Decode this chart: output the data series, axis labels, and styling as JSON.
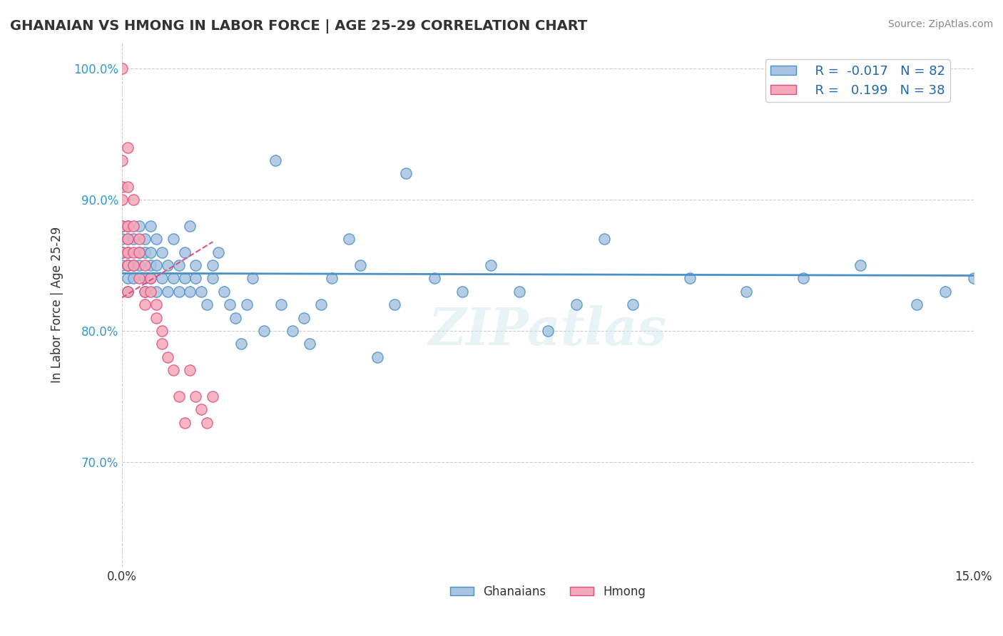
{
  "title": "GHANAIAN VS HMONG IN LABOR FORCE | AGE 25-29 CORRELATION CHART",
  "source": "Source: ZipAtlas.com",
  "xlabel": "",
  "ylabel": "In Labor Force | Age 25-29",
  "xlim": [
    0.0,
    0.15
  ],
  "ylim": [
    0.62,
    1.02
  ],
  "yticks": [
    0.7,
    0.8,
    0.9,
    1.0
  ],
  "ytick_labels": [
    "70.0%",
    "80.0%",
    "90.0%",
    "100.0%"
  ],
  "xticks": [
    0.0,
    0.15
  ],
  "xtick_labels": [
    "0.0%",
    "15.0%"
  ],
  "ghanaian_R": -0.017,
  "ghanaian_N": 82,
  "hmong_R": 0.199,
  "hmong_N": 38,
  "ghanaian_color": "#a8c4e0",
  "hmong_color": "#f4a8b8",
  "trendline_ghanaian_color": "#4a90c8",
  "trendline_hmong_color": "#e05080",
  "watermark": "ZIPatlas",
  "ghanaian_x": [
    0.0,
    0.0,
    0.0,
    0.0,
    0.0,
    0.001,
    0.001,
    0.001,
    0.001,
    0.001,
    0.001,
    0.001,
    0.002,
    0.002,
    0.002,
    0.003,
    0.003,
    0.003,
    0.004,
    0.004,
    0.004,
    0.004,
    0.005,
    0.005,
    0.005,
    0.005,
    0.006,
    0.006,
    0.006,
    0.007,
    0.007,
    0.008,
    0.008,
    0.009,
    0.009,
    0.01,
    0.01,
    0.011,
    0.011,
    0.012,
    0.012,
    0.013,
    0.013,
    0.014,
    0.015,
    0.016,
    0.016,
    0.017,
    0.018,
    0.019,
    0.02,
    0.021,
    0.022,
    0.023,
    0.025,
    0.027,
    0.028,
    0.03,
    0.032,
    0.033,
    0.035,
    0.037,
    0.04,
    0.042,
    0.045,
    0.048,
    0.05,
    0.055,
    0.06,
    0.065,
    0.07,
    0.075,
    0.08,
    0.085,
    0.09,
    0.1,
    0.11,
    0.12,
    0.13,
    0.14,
    0.145,
    0.15
  ],
  "ghanaian_y": [
    0.85,
    0.86,
    0.87,
    0.88,
    0.86,
    0.85,
    0.87,
    0.86,
    0.88,
    0.85,
    0.84,
    0.83,
    0.87,
    0.84,
    0.85,
    0.86,
    0.88,
    0.85,
    0.84,
    0.87,
    0.83,
    0.86,
    0.85,
    0.88,
    0.84,
    0.86,
    0.85,
    0.83,
    0.87,
    0.84,
    0.86,
    0.85,
    0.83,
    0.84,
    0.87,
    0.85,
    0.83,
    0.84,
    0.86,
    0.88,
    0.83,
    0.85,
    0.84,
    0.83,
    0.82,
    0.85,
    0.84,
    0.86,
    0.83,
    0.82,
    0.81,
    0.79,
    0.82,
    0.84,
    0.8,
    0.93,
    0.82,
    0.8,
    0.81,
    0.79,
    0.82,
    0.84,
    0.87,
    0.85,
    0.78,
    0.82,
    0.92,
    0.84,
    0.83,
    0.85,
    0.83,
    0.8,
    0.82,
    0.87,
    0.82,
    0.84,
    0.83,
    0.84,
    0.85,
    0.82,
    0.83,
    0.84
  ],
  "hmong_x": [
    0.0,
    0.0,
    0.0,
    0.0,
    0.0,
    0.0,
    0.001,
    0.001,
    0.001,
    0.001,
    0.001,
    0.001,
    0.001,
    0.002,
    0.002,
    0.002,
    0.002,
    0.003,
    0.003,
    0.003,
    0.004,
    0.004,
    0.004,
    0.005,
    0.005,
    0.006,
    0.006,
    0.007,
    0.007,
    0.008,
    0.009,
    0.01,
    0.011,
    0.012,
    0.013,
    0.014,
    0.015,
    0.016
  ],
  "hmong_y": [
    1.0,
    0.93,
    0.91,
    0.9,
    0.88,
    0.86,
    0.94,
    0.91,
    0.88,
    0.87,
    0.86,
    0.85,
    0.83,
    0.9,
    0.88,
    0.86,
    0.85,
    0.87,
    0.86,
    0.84,
    0.85,
    0.83,
    0.82,
    0.84,
    0.83,
    0.82,
    0.81,
    0.8,
    0.79,
    0.78,
    0.77,
    0.75,
    0.73,
    0.77,
    0.75,
    0.74,
    0.73,
    0.75
  ]
}
